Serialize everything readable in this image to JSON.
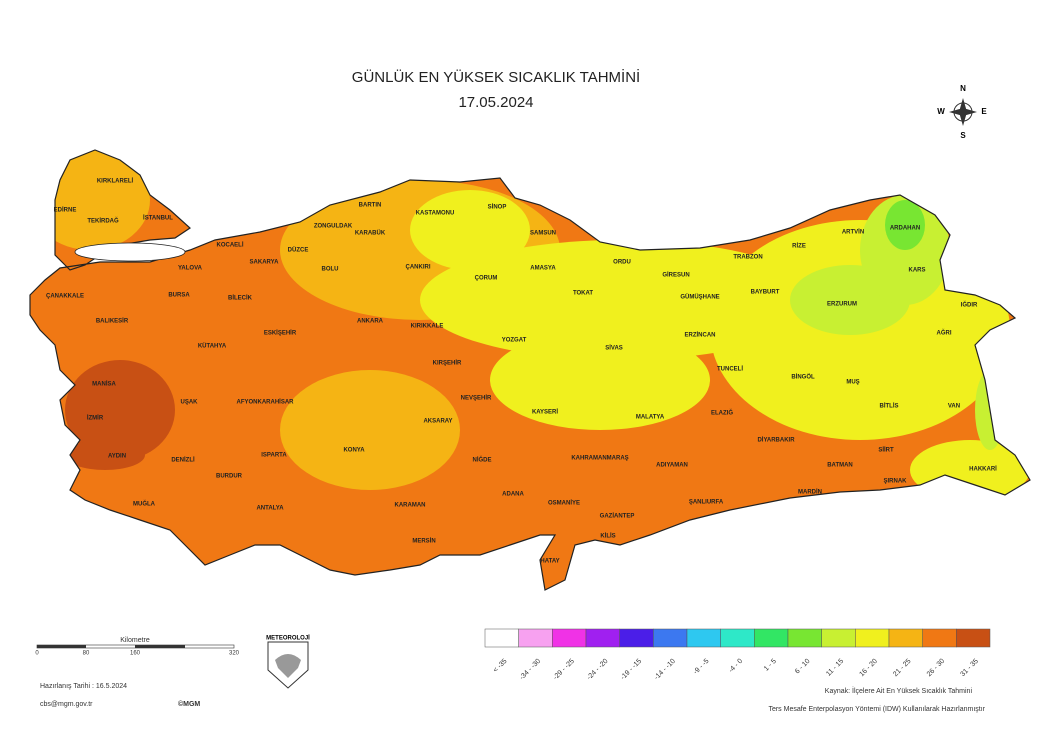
{
  "header": {
    "title": "GÜNLÜK EN YÜKSEK SICAKLIK TAHMİNİ",
    "date": "17.05.2024"
  },
  "compass": {
    "n": "N",
    "s": "S",
    "e": "E",
    "w": "W"
  },
  "provinces": [
    "KIRKLARELİ",
    "EDİRNE",
    "TEKİRDAĞ",
    "İSTANBUL",
    "KOCAELİ",
    "DÜZCE",
    "BARTIN",
    "ZONGULDAK",
    "KARABÜK",
    "KASTAMONU",
    "SİNOP",
    "SAMSUN",
    "SAKARYA",
    "BOLU",
    "ÇANKIRI",
    "ÇORUM",
    "AMASYA",
    "ORDU",
    "GİRESUN",
    "TRABZON",
    "RİZE",
    "ARTVİN",
    "ARDAHAN",
    "KARS",
    "IĞDIR",
    "ERZURUM",
    "BAYBURT",
    "GÜMÜŞHANE",
    "TOKAT",
    "YALOVA",
    "ÇANAKKALE",
    "BALIKESİR",
    "BURSA",
    "BİLECİK",
    "ESKİŞEHİR",
    "ANKARA",
    "KIRIKKALE",
    "YOZGAT",
    "SİVAS",
    "ERZİNCAN",
    "AĞRI",
    "TUNCELİ",
    "BİNGÖL",
    "MUŞ",
    "BİTLİS",
    "VAN",
    "KÜTAHYA",
    "MANİSA",
    "UŞAK",
    "AFYONKARAHİSAR",
    "KIRŞEHİR",
    "NEVŞEHİR",
    "KAYSERİ",
    "MALATYA",
    "ELAZIĞ",
    "İZMİR",
    "AKSARAY",
    "DİYARBAKIR",
    "SİİRT",
    "AYDIN",
    "DENİZLİ",
    "ISPARTA",
    "KONYA",
    "NİĞDE",
    "KAHRAMANMARAŞ",
    "ADIYAMAN",
    "BATMAN",
    "ŞIRNAK",
    "HAKKARİ",
    "MUĞLA",
    "BURDUR",
    "ADANA",
    "OSMANİYE",
    "ŞANLIURFA",
    "MARDİN",
    "ANTALYA",
    "KARAMAN",
    "GAZİANTEP",
    "KİLİS",
    "MERSİN",
    "HATAY"
  ],
  "legend": {
    "items": [
      {
        "label": "< -35",
        "color": "#ffffff"
      },
      {
        "label": "-34 - -30",
        "color": "#f7a1f0"
      },
      {
        "label": "-29 - -25",
        "color": "#f032e6"
      },
      {
        "label": "-24 - -20",
        "color": "#a020f0"
      },
      {
        "label": "-19 - -15",
        "color": "#4b1ee8"
      },
      {
        "label": "-14 - -10",
        "color": "#3c78f0"
      },
      {
        "label": "-9 - -5",
        "color": "#2ec8f0"
      },
      {
        "label": "-4 - 0",
        "color": "#2ee8c8"
      },
      {
        "label": "1 - 5",
        "color": "#32e664"
      },
      {
        "label": "6 - 10",
        "color": "#78e632"
      },
      {
        "label": "11 - 15",
        "color": "#c8f032"
      },
      {
        "label": "16 - 20",
        "color": "#f0f01e"
      },
      {
        "label": "21 - 25",
        "color": "#f5b414"
      },
      {
        "label": "26 - 30",
        "color": "#f07814"
      },
      {
        "label": "31 - 35",
        "color": "#c85014"
      }
    ]
  },
  "scale": {
    "unit": "Kilometre",
    "labels": [
      "0",
      "80",
      "160",
      "320"
    ]
  },
  "footer": {
    "prepared": "Hazırlanış Tarihi : 16.5.2024",
    "email": "cbs@mgm.gov.tr",
    "copyright": "©MGM",
    "logo": "METEOROLOJİ",
    "source": "Kaynak: İlçelere Ait En Yüksek Sıcaklık Tahmini",
    "method": "Ters Mesafe Enterpolasyon Yöntemi (IDW) Kullanılarak Hazırlanmıştır"
  }
}
